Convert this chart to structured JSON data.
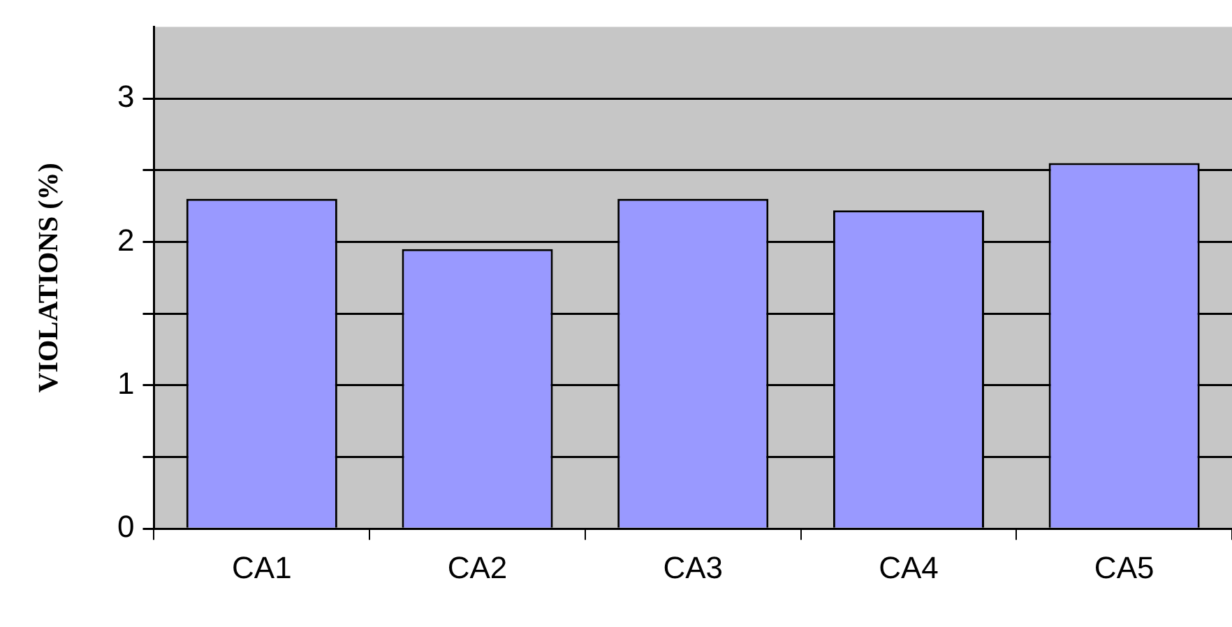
{
  "chart_data": {
    "type": "bar",
    "ylabel": "VIOLATIONS (%)",
    "categories": [
      "CA1",
      "CA2",
      "CA3",
      "CA4",
      "CA5"
    ],
    "values": [
      2.3,
      1.95,
      2.3,
      2.22,
      2.55
    ],
    "color": "#9999ff",
    "ylim": [
      0,
      3.5
    ],
    "yticks": [
      0,
      {
        "value": 0.5,
        "label": null
      },
      1,
      {
        "value": 1.5,
        "label": null
      },
      2,
      {
        "value": 2.5,
        "label": null
      },
      3
    ],
    "grid": "y",
    "legend": false
  }
}
